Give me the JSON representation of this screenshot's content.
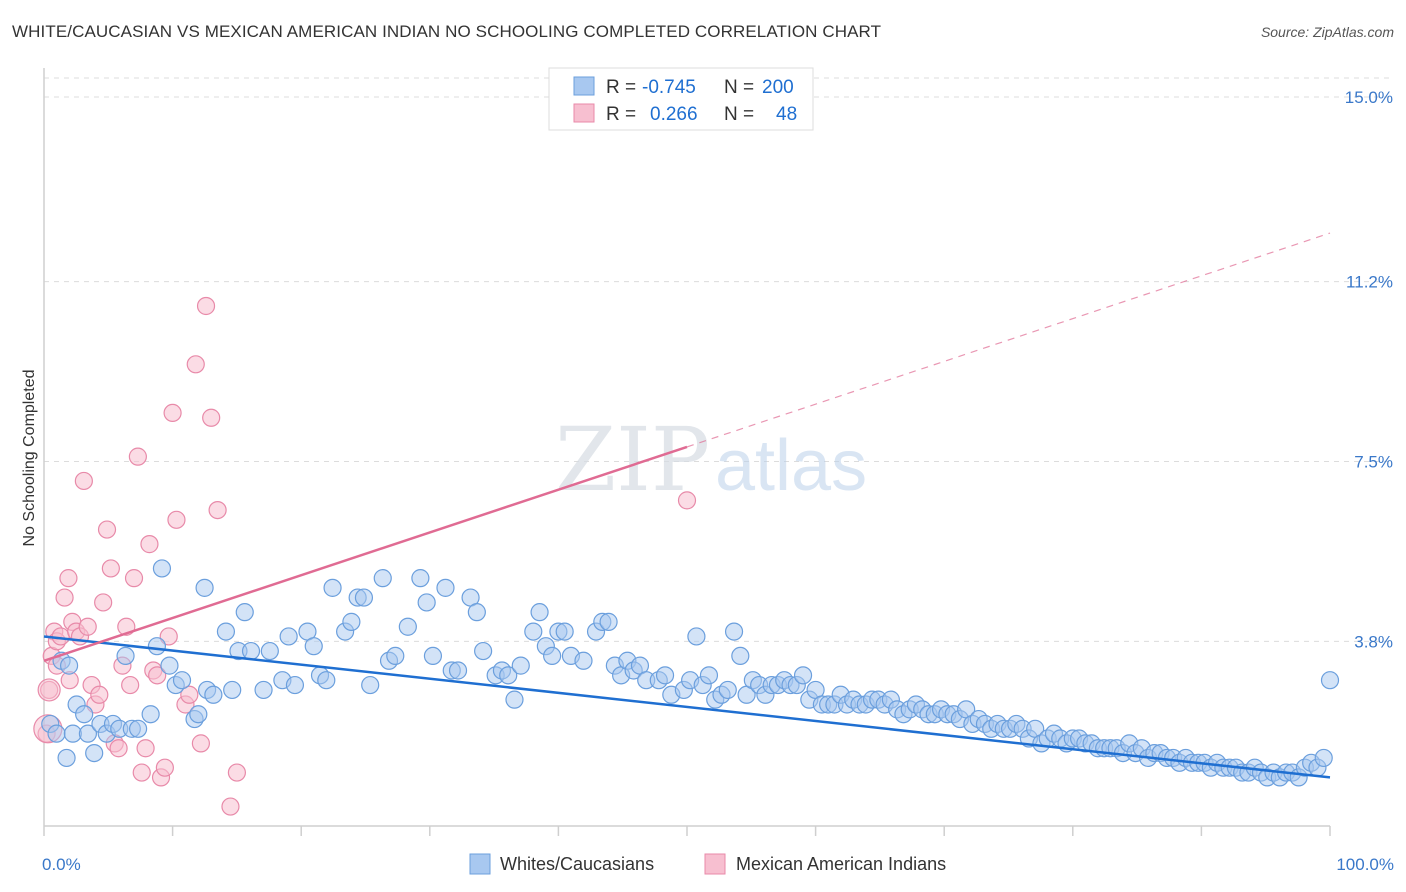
{
  "header": {
    "title": "WHITE/CAUCASIAN VS MEXICAN AMERICAN INDIAN NO SCHOOLING COMPLETED CORRELATION CHART",
    "source": "Source: ZipAtlas.com"
  },
  "watermark": {
    "zip": "ZIP",
    "atlas": "atlas"
  },
  "legend_top": {
    "rows": [
      {
        "r_label": "R =",
        "r_value": "-0.745",
        "n_label": "N =",
        "n_value": "200"
      },
      {
        "r_label": "R =",
        "r_value": "0.266",
        "n_label": "N =",
        "n_value": "48"
      }
    ]
  },
  "legend_bottom": {
    "items": [
      {
        "label": "Whites/Caucasians"
      },
      {
        "label": "Mexican American Indians"
      }
    ]
  },
  "colors": {
    "blue_fill": "#a8c8f0",
    "blue_stroke": "#6b9fdd",
    "blue_line": "#1f6fd1",
    "pink_fill": "#f7bfd0",
    "pink_stroke": "#e88aa9",
    "pink_line": "#e06b93",
    "tick_text": "#3a78c9"
  },
  "chart_data": {
    "type": "scatter",
    "title": "WHITE/CAUCASIAN VS MEXICAN AMERICAN INDIAN NO SCHOOLING COMPLETED CORRELATION CHART",
    "xlabel": "",
    "ylabel": "No Schooling Completed",
    "xlim": [
      0,
      100
    ],
    "ylim": [
      0,
      15.5
    ],
    "y_ticks": [
      {
        "value": 3.8,
        "label": "3.8%"
      },
      {
        "value": 7.5,
        "label": "7.5%"
      },
      {
        "value": 11.2,
        "label": "11.2%"
      },
      {
        "value": 15.0,
        "label": "15.0%"
      }
    ],
    "x_ticks": [
      {
        "value": 0,
        "label": "0.0%"
      },
      {
        "value": 100,
        "label": "100.0%"
      }
    ],
    "grid": true,
    "legend_placement": "top-center",
    "series": [
      {
        "name": "Whites/Caucasians",
        "R": -0.745,
        "N": 200,
        "trend": {
          "x": [
            0,
            100
          ],
          "y": [
            3.9,
            1.0
          ]
        },
        "points": [
          [
            0.5,
            2.1
          ],
          [
            1,
            1.9
          ],
          [
            1.4,
            3.4
          ],
          [
            1.8,
            1.4
          ],
          [
            2,
            3.3
          ],
          [
            2.3,
            1.9
          ],
          [
            2.6,
            2.5
          ],
          [
            3.2,
            2.3
          ],
          [
            3.5,
            1.9
          ],
          [
            4,
            1.5
          ],
          [
            4.5,
            2.1
          ],
          [
            5,
            1.9
          ],
          [
            5.5,
            2.1
          ],
          [
            6,
            2.0
          ],
          [
            6.5,
            3.5
          ],
          [
            7,
            2.0
          ],
          [
            7.5,
            2.0
          ],
          [
            8.5,
            2.3
          ],
          [
            9,
            3.7
          ],
          [
            9.4,
            5.3
          ],
          [
            10,
            3.3
          ],
          [
            10.5,
            2.9
          ],
          [
            11,
            3.0
          ],
          [
            12,
            2.2
          ],
          [
            12.3,
            2.3
          ],
          [
            12.8,
            4.9
          ],
          [
            13,
            2.8
          ],
          [
            13.5,
            2.7
          ],
          [
            14.5,
            4.0
          ],
          [
            15,
            2.8
          ],
          [
            15.5,
            3.6
          ],
          [
            16,
            4.4
          ],
          [
            16.5,
            3.6
          ],
          [
            17.5,
            2.8
          ],
          [
            18,
            3.6
          ],
          [
            19,
            3.0
          ],
          [
            19.5,
            3.9
          ],
          [
            20,
            2.9
          ],
          [
            21,
            4.0
          ],
          [
            21.5,
            3.7
          ],
          [
            22,
            3.1
          ],
          [
            22.5,
            3.0
          ],
          [
            23,
            4.9
          ],
          [
            24,
            4.0
          ],
          [
            24.5,
            4.2
          ],
          [
            25,
            4.7
          ],
          [
            25.5,
            4.7
          ],
          [
            26,
            2.9
          ],
          [
            27,
            5.1
          ],
          [
            27.5,
            3.4
          ],
          [
            28,
            3.5
          ],
          [
            29,
            4.1
          ],
          [
            30,
            5.1
          ],
          [
            30.5,
            4.6
          ],
          [
            31,
            3.5
          ],
          [
            32,
            4.9
          ],
          [
            32.5,
            3.2
          ],
          [
            33,
            3.2
          ],
          [
            34,
            4.7
          ],
          [
            34.5,
            4.4
          ],
          [
            35,
            3.6
          ],
          [
            36,
            3.1
          ],
          [
            36.5,
            3.2
          ],
          [
            37,
            3.1
          ],
          [
            37.5,
            2.6
          ],
          [
            38,
            3.3
          ],
          [
            39,
            4.0
          ],
          [
            39.5,
            4.4
          ],
          [
            40,
            3.7
          ],
          [
            40.5,
            3.5
          ],
          [
            41,
            4.0
          ],
          [
            41.5,
            4.0
          ],
          [
            42,
            3.5
          ],
          [
            43,
            3.4
          ],
          [
            44,
            4.0
          ],
          [
            44.5,
            4.2
          ],
          [
            45,
            4.2
          ],
          [
            45.5,
            3.3
          ],
          [
            46,
            3.1
          ],
          [
            46.5,
            3.4
          ],
          [
            47,
            3.2
          ],
          [
            47.5,
            3.3
          ],
          [
            48,
            3.0
          ],
          [
            49,
            3.0
          ],
          [
            49.5,
            3.1
          ],
          [
            50,
            2.7
          ],
          [
            51,
            2.8
          ],
          [
            51.5,
            3.0
          ],
          [
            52,
            3.9
          ],
          [
            52.5,
            2.9
          ],
          [
            53,
            3.1
          ],
          [
            53.5,
            2.6
          ],
          [
            54,
            2.7
          ],
          [
            54.5,
            2.8
          ],
          [
            55,
            4.0
          ],
          [
            55.5,
            3.5
          ],
          [
            56,
            2.7
          ],
          [
            56.5,
            3.0
          ],
          [
            57,
            2.9
          ],
          [
            57.5,
            2.7
          ],
          [
            58,
            2.9
          ],
          [
            58.5,
            2.9
          ],
          [
            59,
            3.0
          ],
          [
            59.5,
            2.9
          ],
          [
            60,
            2.9
          ],
          [
            60.5,
            3.1
          ],
          [
            61,
            2.6
          ],
          [
            61.5,
            2.8
          ],
          [
            62,
            2.5
          ],
          [
            62.5,
            2.5
          ],
          [
            63,
            2.5
          ],
          [
            63.5,
            2.7
          ],
          [
            64,
            2.5
          ],
          [
            64.5,
            2.6
          ],
          [
            65,
            2.5
          ],
          [
            65.5,
            2.5
          ],
          [
            66,
            2.6
          ],
          [
            66.5,
            2.6
          ],
          [
            67,
            2.5
          ],
          [
            67.5,
            2.6
          ],
          [
            68,
            2.4
          ],
          [
            68.5,
            2.3
          ],
          [
            69,
            2.4
          ],
          [
            69.5,
            2.5
          ],
          [
            70,
            2.4
          ],
          [
            70.5,
            2.3
          ],
          [
            71,
            2.3
          ],
          [
            71.5,
            2.4
          ],
          [
            72,
            2.3
          ],
          [
            72.5,
            2.3
          ],
          [
            73,
            2.2
          ],
          [
            73.5,
            2.4
          ],
          [
            74,
            2.1
          ],
          [
            74.5,
            2.2
          ],
          [
            75,
            2.1
          ],
          [
            75.5,
            2.0
          ],
          [
            76,
            2.1
          ],
          [
            76.5,
            2.0
          ],
          [
            77,
            2.0
          ],
          [
            77.5,
            2.1
          ],
          [
            78,
            2.0
          ],
          [
            78.5,
            1.8
          ],
          [
            79,
            2.0
          ],
          [
            79.5,
            1.7
          ],
          [
            80,
            1.8
          ],
          [
            80.5,
            1.9
          ],
          [
            81,
            1.8
          ],
          [
            81.5,
            1.7
          ],
          [
            82,
            1.8
          ],
          [
            82.5,
            1.8
          ],
          [
            83,
            1.7
          ],
          [
            83.5,
            1.7
          ],
          [
            84,
            1.6
          ],
          [
            84.5,
            1.6
          ],
          [
            85,
            1.6
          ],
          [
            85.5,
            1.6
          ],
          [
            86,
            1.5
          ],
          [
            86.5,
            1.7
          ],
          [
            87,
            1.5
          ],
          [
            87.5,
            1.6
          ],
          [
            88,
            1.4
          ],
          [
            88.5,
            1.5
          ],
          [
            89,
            1.5
          ],
          [
            89.5,
            1.4
          ],
          [
            90,
            1.4
          ],
          [
            90.5,
            1.3
          ],
          [
            91,
            1.4
          ],
          [
            91.5,
            1.3
          ],
          [
            92,
            1.3
          ],
          [
            92.5,
            1.3
          ],
          [
            93,
            1.2
          ],
          [
            93.5,
            1.3
          ],
          [
            94,
            1.2
          ],
          [
            94.5,
            1.2
          ],
          [
            95,
            1.2
          ],
          [
            95.5,
            1.1
          ],
          [
            96,
            1.1
          ],
          [
            96.5,
            1.2
          ],
          [
            97,
            1.1
          ],
          [
            97.5,
            1.0
          ],
          [
            98,
            1.1
          ],
          [
            98.5,
            1.0
          ],
          [
            99,
            1.1
          ],
          [
            99.5,
            1.1
          ],
          [
            100,
            1.0
          ],
          [
            100.5,
            1.2
          ],
          [
            101,
            1.3
          ],
          [
            101.5,
            1.2
          ],
          [
            102,
            1.4
          ],
          [
            102.5,
            3.0
          ]
        ]
      },
      {
        "name": "Mexican American Indians",
        "R": 0.266,
        "N": 48,
        "trend": {
          "x": [
            0,
            50
          ],
          "y": [
            3.4,
            7.8
          ],
          "dashed_to": {
            "x": 100,
            "y": 12.2
          }
        },
        "points": [
          [
            0.2,
            1.9
          ],
          [
            0.4,
            2.8
          ],
          [
            0.6,
            3.5
          ],
          [
            0.8,
            4.0
          ],
          [
            1,
            3.8
          ],
          [
            1.3,
            3.9
          ],
          [
            1.6,
            4.7
          ],
          [
            1.9,
            5.1
          ],
          [
            2.2,
            4.2
          ],
          [
            2.5,
            4.0
          ],
          [
            2.8,
            3.9
          ],
          [
            3.1,
            7.1
          ],
          [
            3.4,
            4.1
          ],
          [
            3.7,
            2.9
          ],
          [
            4.0,
            2.5
          ],
          [
            4.3,
            2.7
          ],
          [
            4.6,
            4.6
          ],
          [
            4.9,
            6.1
          ],
          [
            5.2,
            5.3
          ],
          [
            5.5,
            1.7
          ],
          [
            5.8,
            1.6
          ],
          [
            6.1,
            3.3
          ],
          [
            6.4,
            4.1
          ],
          [
            6.7,
            2.9
          ],
          [
            7.0,
            5.1
          ],
          [
            7.3,
            7.6
          ],
          [
            7.6,
            1.1
          ],
          [
            7.9,
            1.6
          ],
          [
            8.2,
            5.8
          ],
          [
            8.5,
            3.2
          ],
          [
            8.8,
            3.1
          ],
          [
            9.1,
            1.0
          ],
          [
            9.4,
            1.2
          ],
          [
            9.7,
            3.9
          ],
          [
            10,
            8.5
          ],
          [
            10.3,
            6.3
          ],
          [
            11,
            2.5
          ],
          [
            11.3,
            2.7
          ],
          [
            11.8,
            9.5
          ],
          [
            12.2,
            1.7
          ],
          [
            12.6,
            10.7
          ],
          [
            13,
            8.4
          ],
          [
            13.5,
            6.5
          ],
          [
            14.5,
            0.4
          ],
          [
            15,
            1.1
          ],
          [
            50,
            6.7
          ],
          [
            1.0,
            3.3
          ],
          [
            2.0,
            3.0
          ]
        ]
      }
    ]
  }
}
